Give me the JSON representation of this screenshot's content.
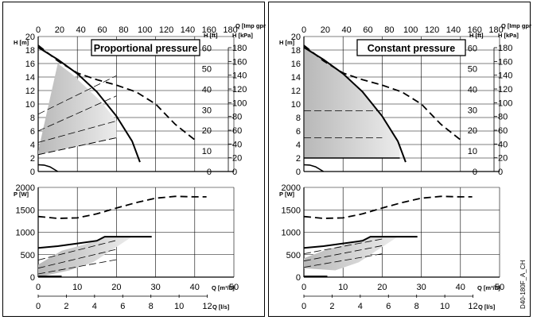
{
  "figure_code": "D40-180F_A_CH",
  "axis_units": {
    "q_top": "Q [Imp gpm]",
    "h_m": "H [m]",
    "h_ft": "H [ft]",
    "h_kpa": "H [kPa]",
    "p_w": "P [W]",
    "q_m3h": "Q [m³/h]",
    "q_ls": "Q [l/s]"
  },
  "chart_data": [
    {
      "type": "line",
      "title": "Proportional pressure",
      "q_top_ticks": [
        "0",
        "20",
        "40",
        "60",
        "80",
        "100",
        "120",
        "140",
        "160",
        "180"
      ],
      "h_m_ticks": [
        "0",
        "2",
        "4",
        "6",
        "8",
        "10",
        "12",
        "14",
        "16",
        "18",
        "20"
      ],
      "h_ft_ticks": [
        "0",
        "10",
        "20",
        "30",
        "40",
        "50",
        "60"
      ],
      "h_kpa_ticks": [
        "0",
        "20",
        "40",
        "60",
        "80",
        "100",
        "120",
        "140",
        "160",
        "180"
      ],
      "p_ticks": [
        "0",
        "500",
        "1000",
        "1500",
        "2000"
      ],
      "q_m3h_ticks": [
        "0",
        "10",
        "20",
        "30",
        "40",
        "50"
      ],
      "q_ls_ticks": [
        "0",
        "2",
        "4",
        "6",
        "8",
        "10",
        "12"
      ],
      "xlim_m3h": [
        0,
        50
      ],
      "ylim_h": [
        0,
        20
      ],
      "ylim_p": [
        0,
        2000
      ],
      "head_curves": {
        "max_speed_q": [
          0,
          5,
          10,
          15,
          20,
          24,
          26
        ],
        "max_speed_h": [
          18.4,
          16.6,
          14.5,
          11.8,
          8.2,
          4.5,
          1.4
        ],
        "dashed_q": [
          0,
          5,
          10,
          15,
          20,
          25,
          30,
          35,
          40
        ],
        "dashed_h": [
          18.7,
          16.4,
          14.6,
          13.6,
          12.8,
          11.8,
          10.0,
          7.0,
          4.7
        ],
        "shaded_region_q": [
          0,
          5,
          8.5,
          12,
          16,
          20,
          20,
          0
        ],
        "shaded_region_h": [
          3,
          16,
          14.5,
          12.6,
          10.4,
          7.5,
          5,
          2.5
        ],
        "prop_lines": [
          {
            "q": [
              0,
              20
            ],
            "h": [
              8.5,
              14.2
            ]
          },
          {
            "q": [
              0,
              20
            ],
            "h": [
              6.0,
              11.2
            ]
          },
          {
            "q": [
              0,
              20
            ],
            "h": [
              4.3,
              7.5
            ]
          },
          {
            "q": [
              0,
              20
            ],
            "h": [
              2.5,
              5.0
            ]
          }
        ],
        "min_q": [
          0,
          1.5,
          3,
          5
        ],
        "min_h": [
          1.0,
          0.95,
          0.7,
          0
        ]
      },
      "power_curves": {
        "max_q": [
          0,
          5,
          10,
          15,
          17,
          20,
          24,
          26,
          29
        ],
        "max_p": [
          650,
          690,
          750,
          810,
          900,
          900,
          900,
          900,
          900
        ],
        "dashed_q": [
          0,
          5,
          10,
          15,
          20,
          25,
          30,
          35,
          40,
          43
        ],
        "dashed_p": [
          1350,
          1310,
          1320,
          1410,
          1540,
          1660,
          1760,
          1800,
          1790,
          1790
        ],
        "shaded_q": [
          0,
          6,
          12,
          17,
          24,
          14,
          8,
          0
        ],
        "shaded_p": [
          280,
          590,
          730,
          900,
          900,
          330,
          150,
          0
        ],
        "prop_lines": [
          {
            "q": [
              0,
              20
            ],
            "p": [
              380,
              820
            ]
          },
          {
            "q": [
              0,
              20
            ],
            "p": [
              200,
              620
            ]
          },
          {
            "q": [
              0,
              20
            ],
            "p": [
              70,
              390
            ]
          }
        ],
        "min_q": [
          0,
          6
        ],
        "min_p": [
          20,
          20
        ]
      }
    },
    {
      "type": "line",
      "title": "Constant pressure",
      "q_top_ticks": [
        "0",
        "20",
        "40",
        "60",
        "80",
        "100",
        "120",
        "140",
        "160",
        "180"
      ],
      "h_m_ticks": [
        "0",
        "2",
        "4",
        "6",
        "8",
        "10",
        "12",
        "14",
        "16",
        "18",
        "20"
      ],
      "h_ft_ticks": [
        "0",
        "10",
        "20",
        "30",
        "40",
        "50",
        "60"
      ],
      "h_kpa_ticks": [
        "0",
        "20",
        "40",
        "60",
        "80",
        "100",
        "120",
        "140",
        "160",
        "180"
      ],
      "p_ticks": [
        "0",
        "500",
        "1000",
        "1500",
        "2000"
      ],
      "q_m3h_ticks": [
        "0",
        "10",
        "20",
        "30",
        "40",
        "50"
      ],
      "q_ls_ticks": [
        "0",
        "2",
        "4",
        "6",
        "8",
        "10",
        "12"
      ],
      "xlim_m3h": [
        0,
        50
      ],
      "ylim_h": [
        0,
        20
      ],
      "ylim_p": [
        0,
        2000
      ],
      "head_curves": {
        "max_speed_q": [
          0,
          5,
          10,
          15,
          20,
          24,
          26
        ],
        "max_speed_h": [
          18.4,
          16.6,
          14.5,
          11.8,
          8.2,
          4.5,
          1.4
        ],
        "dashed_q": [
          0,
          5,
          10,
          15,
          20,
          25,
          30,
          35,
          40
        ],
        "dashed_h": [
          18.7,
          16.4,
          14.6,
          13.6,
          12.8,
          11.8,
          10.0,
          7.0,
          4.7
        ],
        "shaded_region_q": [
          0,
          5,
          10,
          15,
          20,
          24.5,
          24.5,
          0
        ],
        "shaded_region_h": [
          18.4,
          16.6,
          14.5,
          11.8,
          8.2,
          4.2,
          2,
          2
        ],
        "const_lines": [
          {
            "q": [
              0,
              20
            ],
            "h": [
              9.0,
              9.0
            ]
          },
          {
            "q": [
              0,
              20
            ],
            "h": [
              5.0,
              5.0
            ]
          },
          {
            "q": [
              0,
              24.5
            ],
            "h": [
              2.0,
              2.0
            ]
          }
        ],
        "min_q": [
          0,
          1.5,
          3,
          5
        ],
        "min_h": [
          1.0,
          0.95,
          0.7,
          0
        ]
      },
      "power_curves": {
        "max_q": [
          0,
          5,
          10,
          15,
          17,
          20,
          24,
          26,
          29
        ],
        "max_p": [
          650,
          690,
          750,
          810,
          900,
          900,
          900,
          900,
          900
        ],
        "dashed_q": [
          0,
          5,
          10,
          15,
          20,
          25,
          30,
          35,
          40,
          43
        ],
        "dashed_p": [
          1350,
          1310,
          1320,
          1410,
          1540,
          1660,
          1760,
          1800,
          1790,
          1790
        ],
        "shaded_q": [
          0,
          6,
          12,
          17,
          24,
          14,
          8,
          0
        ],
        "shaded_p": [
          420,
          620,
          760,
          900,
          900,
          330,
          150,
          200
        ],
        "prop_lines": [
          {
            "q": [
              0,
              20
            ],
            "p": [
              520,
              850
            ]
          },
          {
            "q": [
              0,
              20
            ],
            "p": [
              360,
              700
            ]
          },
          {
            "q": [
              0,
              20
            ],
            "p": [
              220,
              520
            ]
          }
        ],
        "min_q": [
          0,
          6
        ],
        "min_p": [
          20,
          20
        ]
      }
    }
  ]
}
